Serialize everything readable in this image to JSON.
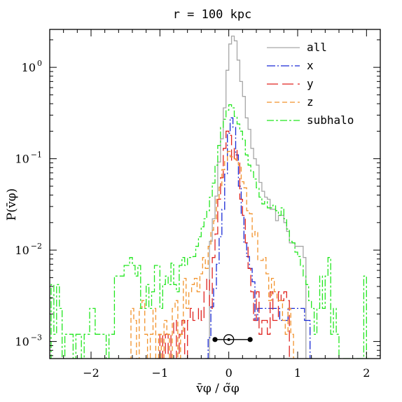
{
  "chart_data": {
    "type": "line",
    "title": "r = 100 kpc",
    "xlabel": "v̄φ / σ̃φ",
    "ylabel": "P(v̄φ)",
    "xlim": [
      -2.6,
      2.2
    ],
    "ylim": [
      0.00065,
      2.6
    ],
    "yscale": "log",
    "x_ticks": [
      -2,
      -1,
      0,
      1,
      2
    ],
    "x_tick_labels": [
      "−2",
      "−1",
      "0",
      "1",
      "2"
    ],
    "y_ticks": [
      0.001,
      0.01,
      0.1,
      1
    ],
    "y_tick_labels": [
      {
        "base": "10",
        "exp": "−3"
      },
      {
        "base": "10",
        "exp": "−2"
      },
      {
        "base": "10",
        "exp": "−1"
      },
      {
        "base": "10",
        "exp": "0"
      }
    ],
    "legend_placement": "top-right",
    "series": [
      {
        "name": "all",
        "color": "#a6a6a6",
        "dash": "solid",
        "steps": [
          [
            -0.32,
            0.00065
          ],
          [
            -0.28,
            0.0125
          ],
          [
            -0.24,
            0.022
          ],
          [
            -0.2,
            0.039
          ],
          [
            -0.16,
            0.092
          ],
          [
            -0.12,
            0.165
          ],
          [
            -0.08,
            0.36
          ],
          [
            -0.04,
            0.93
          ],
          [
            0.0,
            1.8
          ],
          [
            0.04,
            2.2
          ],
          [
            0.08,
            1.95
          ],
          [
            0.12,
            1.2
          ],
          [
            0.16,
            0.7
          ],
          [
            0.2,
            0.48
          ],
          [
            0.24,
            0.28
          ],
          [
            0.28,
            0.21
          ],
          [
            0.32,
            0.13
          ],
          [
            0.36,
            0.1
          ],
          [
            0.4,
            0.085
          ],
          [
            0.44,
            0.055
          ],
          [
            0.48,
            0.044
          ],
          [
            0.52,
            0.038
          ],
          [
            0.56,
            0.036
          ],
          [
            0.6,
            0.028
          ],
          [
            0.64,
            0.028
          ],
          [
            0.68,
            0.021
          ],
          [
            0.72,
            0.024
          ],
          [
            0.76,
            0.024
          ],
          [
            0.8,
            0.02
          ],
          [
            0.84,
            0.016
          ],
          [
            0.88,
            0.012
          ],
          [
            0.92,
            0.012
          ],
          [
            0.96,
            0.011
          ],
          [
            1.0,
            0.011
          ],
          [
            1.04,
            0.011
          ],
          [
            1.08,
            0.0083
          ],
          [
            1.12,
            0.00065
          ]
        ]
      },
      {
        "name": "x",
        "color": "#1a2bd6",
        "dash": "12,3,2,3",
        "steps": [
          [
            -0.34,
            0.00065
          ],
          [
            -0.3,
            0.0011
          ],
          [
            -0.26,
            0.0024
          ],
          [
            -0.22,
            0.0038
          ],
          [
            -0.18,
            0.007
          ],
          [
            -0.14,
            0.014
          ],
          [
            -0.1,
            0.028
          ],
          [
            -0.06,
            0.068
          ],
          [
            -0.02,
            0.19
          ],
          [
            0.02,
            0.28
          ],
          [
            0.06,
            0.22
          ],
          [
            0.1,
            0.11
          ],
          [
            0.14,
            0.05
          ],
          [
            0.18,
            0.024
          ],
          [
            0.22,
            0.012
          ],
          [
            0.26,
            0.0085
          ],
          [
            0.3,
            0.0063
          ],
          [
            0.34,
            0.0045
          ],
          [
            0.38,
            0.0017
          ],
          [
            0.42,
            0.0023
          ],
          [
            0.46,
            0.0023
          ],
          [
            0.5,
            0.0023
          ],
          [
            0.54,
            0.0023
          ],
          [
            0.58,
            0.0023
          ],
          [
            0.62,
            0.0023
          ],
          [
            0.66,
            0.0023
          ],
          [
            0.7,
            0.0023
          ],
          [
            0.74,
            0.0017
          ],
          [
            0.78,
            0.0017
          ],
          [
            0.82,
            0.0017
          ],
          [
            0.86,
            0.0023
          ],
          [
            0.9,
            0.0023
          ],
          [
            0.94,
            0.0023
          ],
          [
            0.98,
            0.0023
          ],
          [
            1.02,
            0.0023
          ],
          [
            1.06,
            0.0023
          ],
          [
            1.1,
            0.0017
          ],
          [
            1.14,
            0.0017
          ],
          [
            1.18,
            0.00065
          ]
        ]
      },
      {
        "name": "y",
        "color": "#e0231f",
        "dash": "16,6",
        "steps": [
          [
            -1.04,
            0.00065
          ],
          [
            -1.0,
            0.0012
          ],
          [
            -0.96,
            0.00065
          ],
          [
            -0.92,
            0.0012
          ],
          [
            -0.88,
            0.00065
          ],
          [
            -0.84,
            0.0012
          ],
          [
            -0.8,
            0.0017
          ],
          [
            -0.76,
            0.00065
          ],
          [
            -0.72,
            0.0012
          ],
          [
            -0.68,
            0.0017
          ],
          [
            -0.64,
            0.00065
          ],
          [
            -0.6,
            0.0017
          ],
          [
            -0.56,
            0.0023
          ],
          [
            -0.52,
            0.0017
          ],
          [
            -0.48,
            0.0017
          ],
          [
            -0.44,
            0.0023
          ],
          [
            -0.4,
            0.0017
          ],
          [
            -0.36,
            0.0035
          ],
          [
            -0.32,
            0.0049
          ],
          [
            -0.28,
            0.0023
          ],
          [
            -0.24,
            0.0083
          ],
          [
            -0.2,
            0.015
          ],
          [
            -0.16,
            0.036
          ],
          [
            -0.12,
            0.062
          ],
          [
            -0.08,
            0.13
          ],
          [
            -0.04,
            0.2
          ],
          [
            0.0,
            0.18
          ],
          [
            0.04,
            0.095
          ],
          [
            0.08,
            0.13
          ],
          [
            0.12,
            0.095
          ],
          [
            0.16,
            0.036
          ],
          [
            0.2,
            0.024
          ],
          [
            0.24,
            0.012
          ],
          [
            0.28,
            0.0063
          ],
          [
            0.32,
            0.0035
          ],
          [
            0.36,
            0.0017
          ],
          [
            0.4,
            0.0035
          ],
          [
            0.44,
            0.0012
          ],
          [
            0.48,
            0.0017
          ],
          [
            0.52,
            0.0017
          ],
          [
            0.56,
            0.0012
          ],
          [
            0.6,
            0.0035
          ],
          [
            0.64,
            0.0017
          ],
          [
            0.68,
            0.0017
          ],
          [
            0.72,
            0.0035
          ],
          [
            0.76,
            0.0028
          ],
          [
            0.8,
            0.0035
          ],
          [
            0.84,
            0.0028
          ],
          [
            0.88,
            0.00065
          ]
        ]
      },
      {
        "name": "z",
        "color": "#f2922b",
        "dash": "7,4",
        "steps": [
          [
            -1.46,
            0.00065
          ],
          [
            -1.42,
            0.0023
          ],
          [
            -1.38,
            0.0017
          ],
          [
            -1.34,
            0.00065
          ],
          [
            -1.3,
            0.0023
          ],
          [
            -1.26,
            0.0028
          ],
          [
            -1.22,
            0.0012
          ],
          [
            -1.18,
            0.00065
          ],
          [
            -1.14,
            0.0012
          ],
          [
            -1.1,
            0.0023
          ],
          [
            -1.06,
            0.00065
          ],
          [
            -1.02,
            0.0012
          ],
          [
            -0.98,
            0.00065
          ],
          [
            -0.94,
            0.0017
          ],
          [
            -0.9,
            0.0012
          ],
          [
            -0.86,
            0.00065
          ],
          [
            -0.82,
            0.0023
          ],
          [
            -0.78,
            0.0028
          ],
          [
            -0.74,
            0.00065
          ],
          [
            -0.7,
            0.0012
          ],
          [
            -0.66,
            0.0049
          ],
          [
            -0.62,
            0.0023
          ],
          [
            -0.58,
            0.0035
          ],
          [
            -0.54,
            0.0042
          ],
          [
            -0.5,
            0.0049
          ],
          [
            -0.46,
            0.0035
          ],
          [
            -0.42,
            0.0055
          ],
          [
            -0.38,
            0.0083
          ],
          [
            -0.34,
            0.0063
          ],
          [
            -0.3,
            0.011
          ],
          [
            -0.26,
            0.0165
          ],
          [
            -0.22,
            0.021
          ],
          [
            -0.18,
            0.036
          ],
          [
            -0.14,
            0.049
          ],
          [
            -0.1,
            0.076
          ],
          [
            -0.06,
            0.095
          ],
          [
            -0.02,
            0.12
          ],
          [
            0.02,
            0.105
          ],
          [
            0.06,
            0.1
          ],
          [
            0.1,
            0.097
          ],
          [
            0.14,
            0.085
          ],
          [
            0.18,
            0.056
          ],
          [
            0.22,
            0.048
          ],
          [
            0.26,
            0.027
          ],
          [
            0.3,
            0.025
          ],
          [
            0.34,
            0.014
          ],
          [
            0.38,
            0.016
          ],
          [
            0.42,
            0.0077
          ],
          [
            0.46,
            0.0077
          ],
          [
            0.5,
            0.0083
          ],
          [
            0.54,
            0.0055
          ],
          [
            0.58,
            0.0028
          ],
          [
            0.62,
            0.0049
          ],
          [
            0.66,
            0.0035
          ],
          [
            0.7,
            0.0028
          ],
          [
            0.74,
            0.0028
          ],
          [
            0.78,
            0.0017
          ],
          [
            0.82,
            0.0012
          ],
          [
            0.86,
            0.0023
          ],
          [
            0.9,
            0.0012
          ],
          [
            0.94,
            0.00065
          ]
        ]
      },
      {
        "name": "subhalo",
        "color": "#22e61f",
        "dash": "10,3,3,3",
        "steps": [
          [
            -2.62,
            0.00065
          ],
          [
            -2.58,
            0.0042
          ],
          [
            -2.54,
            0.0012
          ],
          [
            -2.5,
            0.0042
          ],
          [
            -2.46,
            0.0023
          ],
          [
            -2.42,
            0.00065
          ],
          [
            -2.38,
            0.0012
          ],
          [
            -2.3,
            0.0012
          ],
          [
            -2.26,
            0.00065
          ],
          [
            -2.22,
            0.0012
          ],
          [
            -2.18,
            0.0012
          ],
          [
            -2.14,
            0.00065
          ],
          [
            -2.1,
            0.0012
          ],
          [
            -2.06,
            0.0012
          ],
          [
            -2.02,
            0.0023
          ],
          [
            -1.98,
            0.0023
          ],
          [
            -1.94,
            0.0012
          ],
          [
            -1.9,
            0.0012
          ],
          [
            -1.86,
            0.0012
          ],
          [
            -1.82,
            0.0012
          ],
          [
            -1.78,
            0.00065
          ],
          [
            -1.74,
            0.0012
          ],
          [
            -1.7,
            0.0012
          ],
          [
            -1.66,
            0.0052
          ],
          [
            -1.6,
            0.0052
          ],
          [
            -1.56,
            0.0052
          ],
          [
            -1.52,
            0.0068
          ],
          [
            -1.48,
            0.0068
          ],
          [
            -1.44,
            0.0083
          ],
          [
            -1.4,
            0.0068
          ],
          [
            -1.36,
            0.0052
          ],
          [
            -1.32,
            0.0068
          ],
          [
            -1.28,
            0.0023
          ],
          [
            -1.24,
            0.0023
          ],
          [
            -1.2,
            0.0042
          ],
          [
            -1.16,
            0.0023
          ],
          [
            -1.12,
            0.0035
          ],
          [
            -1.08,
            0.0068
          ],
          [
            -1.04,
            0.0068
          ],
          [
            -1.0,
            0.0023
          ],
          [
            -0.96,
            0.0042
          ],
          [
            -0.92,
            0.0052
          ],
          [
            -0.88,
            0.0042
          ],
          [
            -0.84,
            0.0072
          ],
          [
            -0.8,
            0.0042
          ],
          [
            -0.76,
            0.0035
          ],
          [
            -0.72,
            0.0068
          ],
          [
            -0.68,
            0.0083
          ],
          [
            -0.64,
            0.0068
          ],
          [
            -0.6,
            0.0083
          ],
          [
            -0.56,
            0.0083
          ],
          [
            -0.52,
            0.0085
          ],
          [
            -0.48,
            0.011
          ],
          [
            -0.44,
            0.014
          ],
          [
            -0.4,
            0.018
          ],
          [
            -0.36,
            0.022
          ],
          [
            -0.32,
            0.027
          ],
          [
            -0.28,
            0.038
          ],
          [
            -0.24,
            0.054
          ],
          [
            -0.2,
            0.085
          ],
          [
            -0.16,
            0.14
          ],
          [
            -0.12,
            0.22
          ],
          [
            -0.08,
            0.27
          ],
          [
            -0.04,
            0.34
          ],
          [
            0.0,
            0.39
          ],
          [
            0.04,
            0.36
          ],
          [
            0.08,
            0.29
          ],
          [
            0.12,
            0.24
          ],
          [
            0.16,
            0.2
          ],
          [
            0.2,
            0.16
          ],
          [
            0.24,
            0.11
          ],
          [
            0.28,
            0.085
          ],
          [
            0.32,
            0.072
          ],
          [
            0.36,
            0.06
          ],
          [
            0.4,
            0.048
          ],
          [
            0.44,
            0.038
          ],
          [
            0.48,
            0.032
          ],
          [
            0.52,
            0.034
          ],
          [
            0.56,
            0.029
          ],
          [
            0.6,
            0.029
          ],
          [
            0.64,
            0.031
          ],
          [
            0.68,
            0.027
          ],
          [
            0.72,
            0.024
          ],
          [
            0.76,
            0.029
          ],
          [
            0.8,
            0.022
          ],
          [
            0.84,
            0.017
          ],
          [
            0.88,
            0.0125
          ],
          [
            0.92,
            0.012
          ],
          [
            0.96,
            0.0095
          ],
          [
            1.0,
            0.0085
          ],
          [
            1.04,
            0.0068
          ],
          [
            1.08,
            0.0052
          ],
          [
            1.12,
            0.0042
          ],
          [
            1.16,
            0.0028
          ],
          [
            1.2,
            0.0023
          ],
          [
            1.24,
            0.0012
          ],
          [
            1.28,
            0.0023
          ],
          [
            1.32,
            0.0052
          ],
          [
            1.36,
            0.0023
          ],
          [
            1.4,
            0.0052
          ],
          [
            1.44,
            0.0083
          ],
          [
            1.48,
            0.0012
          ],
          [
            1.52,
            0.0023
          ],
          [
            1.56,
            0.0012
          ],
          [
            1.6,
            0.00065
          ],
          [
            1.96,
            0.0052
          ],
          [
            2.0,
            0.00065
          ]
        ]
      }
    ],
    "error_bar": {
      "center": 0.0,
      "y": 0.00105,
      "points": [
        -0.2,
        0.0,
        0.31
      ]
    }
  }
}
